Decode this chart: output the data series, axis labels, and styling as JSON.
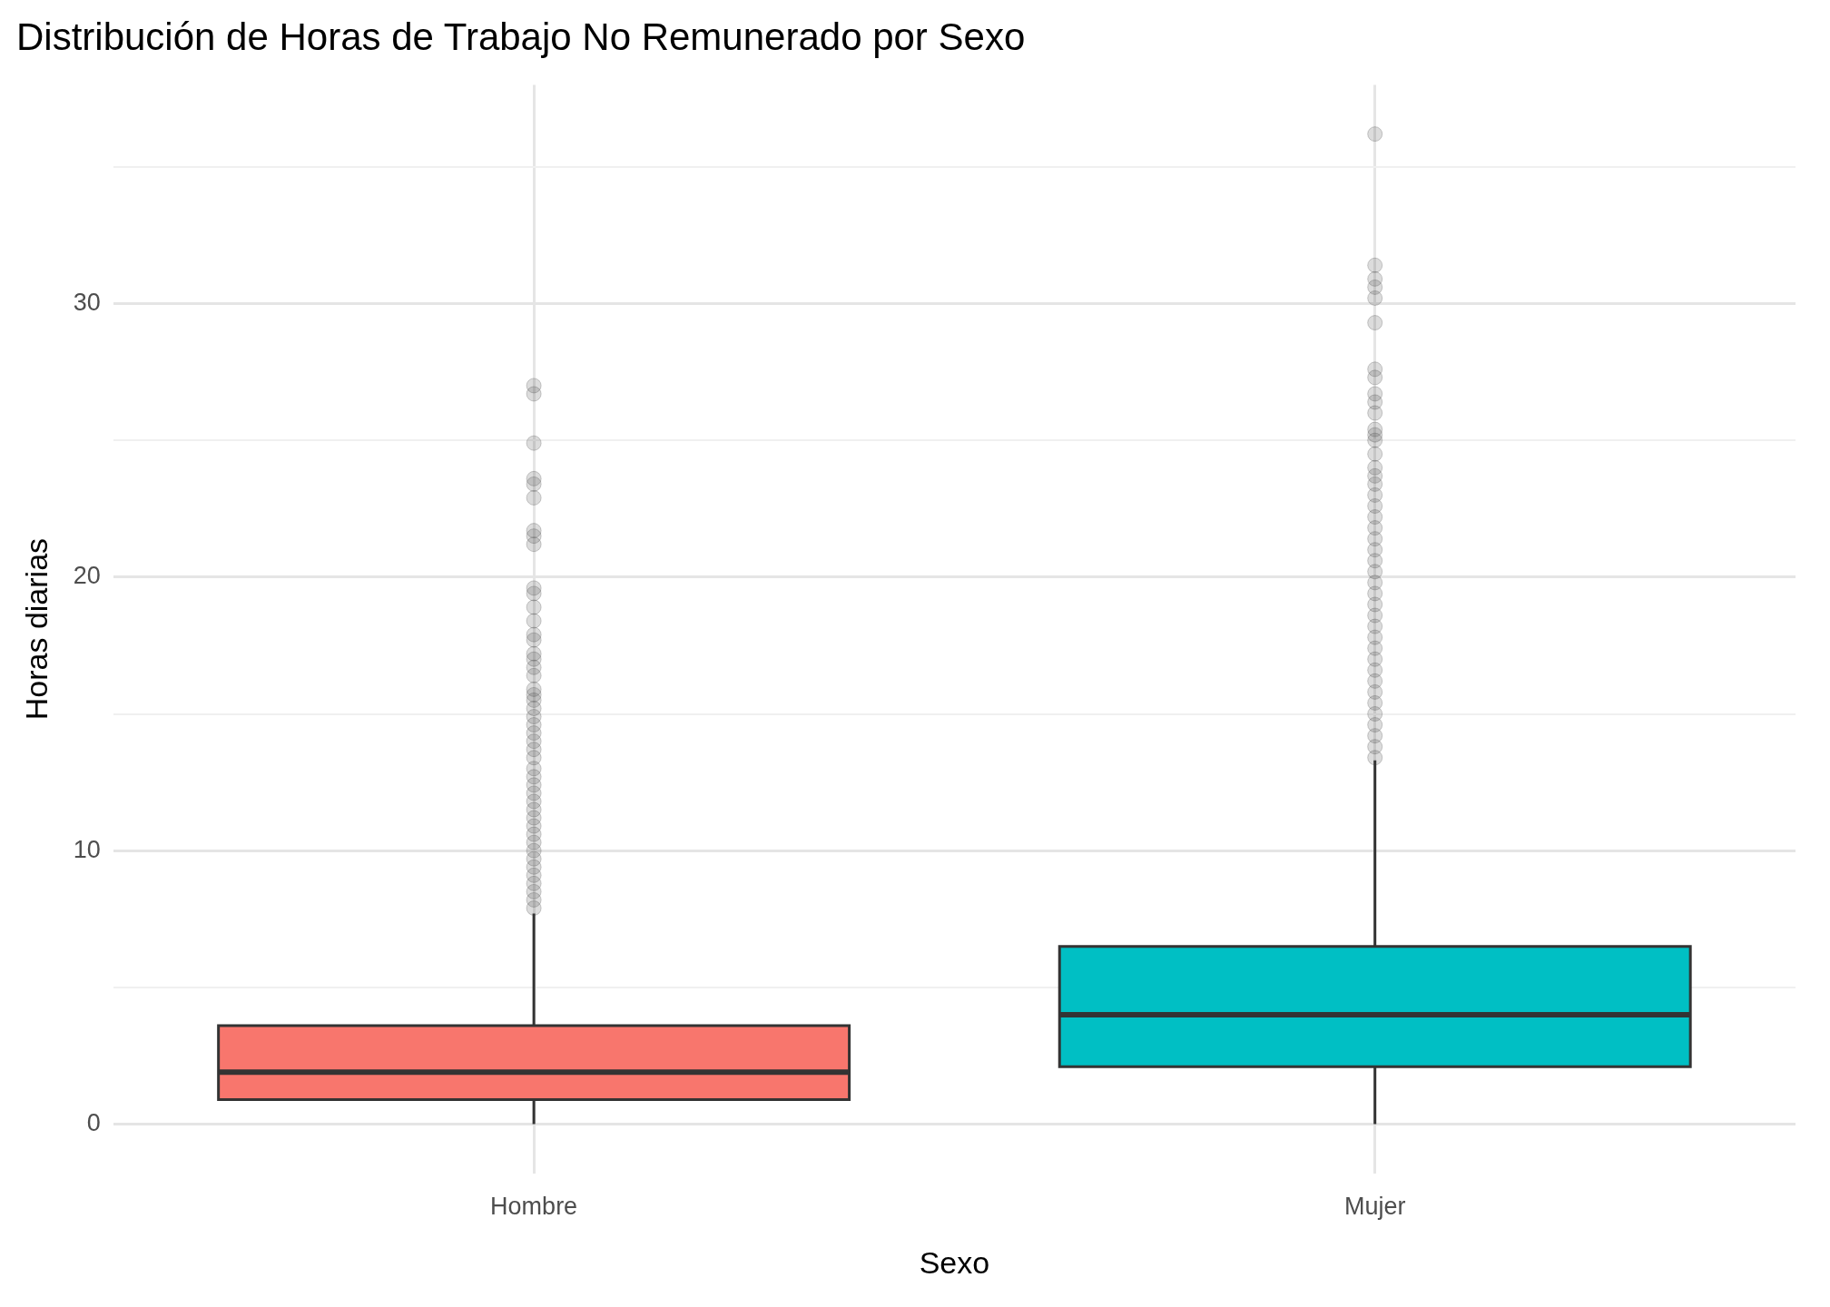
{
  "chart_data": {
    "type": "box",
    "title": "Distribución de Horas de Trabajo No Remunerado por Sexo",
    "xlabel": "Sexo",
    "ylabel": "Horas diarias",
    "categories": [
      "Hombre",
      "Mujer"
    ],
    "colors": [
      "#f8766d",
      "#00bfc4"
    ],
    "boxes": [
      {
        "low": 0,
        "q1": 0.9,
        "median": 1.9,
        "q3": 3.6,
        "high": 7.7,
        "outliers": [
          7.9,
          8.2,
          8.5,
          8.8,
          9.1,
          9.4,
          9.7,
          10.0,
          10.3,
          10.6,
          10.9,
          11.2,
          11.5,
          11.8,
          12.1,
          12.4,
          12.7,
          13.0,
          13.4,
          13.7,
          14.0,
          14.3,
          14.6,
          14.9,
          15.2,
          15.5,
          15.7,
          15.9,
          16.4,
          16.7,
          17.0,
          17.2,
          17.7,
          17.9,
          18.4,
          18.9,
          19.4,
          19.6,
          21.2,
          21.5,
          21.7,
          22.9,
          23.4,
          23.6,
          24.9,
          26.7,
          27.0
        ]
      },
      {
        "low": 0,
        "q1": 2.1,
        "median": 4.0,
        "q3": 6.5,
        "high": 13.3,
        "outliers": [
          13.4,
          13.8,
          14.2,
          14.6,
          15.0,
          15.4,
          15.8,
          16.2,
          16.6,
          17.0,
          17.4,
          17.8,
          18.2,
          18.6,
          19.0,
          19.4,
          19.8,
          20.2,
          20.6,
          21.0,
          21.4,
          21.8,
          22.2,
          22.6,
          23.0,
          23.4,
          23.7,
          24.0,
          24.5,
          25.0,
          25.2,
          25.4,
          26.0,
          26.4,
          26.7,
          27.3,
          27.6,
          29.3,
          30.2,
          30.6,
          30.9,
          31.4,
          36.2
        ]
      }
    ],
    "ylim": [
      -1.8,
      38
    ],
    "yticks": [
      0,
      {
        "value": 5,
        "label": null
      },
      10,
      {
        "value": 15,
        "label": null
      },
      20,
      {
        "value": 25,
        "label": null
      },
      30,
      {
        "value": 35,
        "label": null
      }
    ],
    "grid": true
  }
}
